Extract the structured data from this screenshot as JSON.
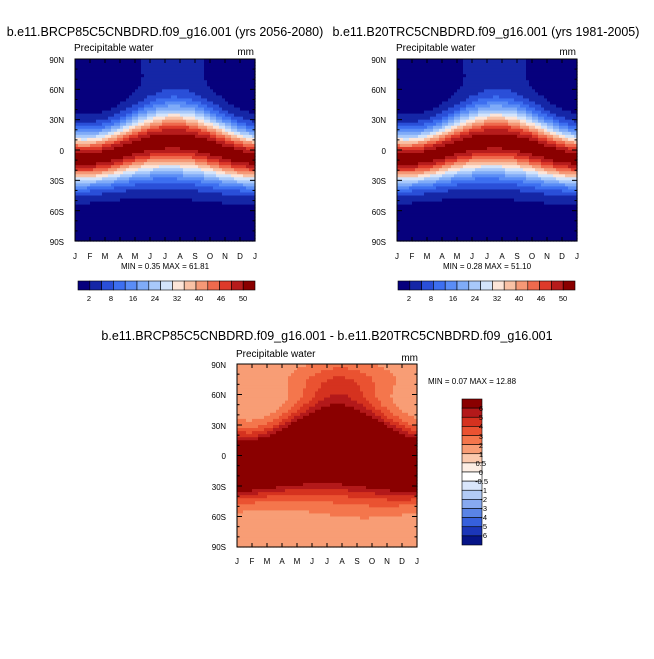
{
  "chart_data": [
    {
      "type": "heatmap",
      "title": "b.e11.BRCP85C5CNBDRD.f09_g16.001 (yrs 2056-2080)",
      "subtitle_left": "Precipitable water",
      "subtitle_right": "mm",
      "x_tick_labels": [
        "J",
        "F",
        "M",
        "A",
        "M",
        "J",
        "J",
        "A",
        "S",
        "O",
        "N",
        "D",
        "J"
      ],
      "y_tick_labels": [
        "90N",
        "60N",
        "30N",
        "0",
        "30S",
        "60S",
        "90S"
      ],
      "stats": "MIN =  0.35 MAX =  61.81",
      "colorbar_labels": [
        "2",
        "8",
        "16",
        "24",
        "32",
        "40",
        "46",
        "50"
      ],
      "scale": 61.8,
      "colormap": "abs"
    },
    {
      "type": "heatmap",
      "title": "b.e11.B20TRC5CNBDRD.f09_g16.001 (yrs 1981-2005)",
      "subtitle_left": "Precipitable water",
      "subtitle_right": "mm",
      "x_tick_labels": [
        "J",
        "F",
        "M",
        "A",
        "M",
        "J",
        "J",
        "A",
        "S",
        "O",
        "N",
        "D",
        "J"
      ],
      "y_tick_labels": [
        "90N",
        "60N",
        "30N",
        "0",
        "30S",
        "60S",
        "90S"
      ],
      "stats": "MIN =  0.28 MAX =  51.10",
      "colorbar_labels": [
        "2",
        "8",
        "16",
        "24",
        "32",
        "40",
        "46",
        "50"
      ],
      "scale": 51.1,
      "colormap": "abs"
    },
    {
      "type": "heatmap",
      "title": "b.e11.BRCP85C5CNBDRD.f09_g16.001 - b.e11.B20TRC5CNBDRD.f09_g16.001",
      "subtitle_left": "Precipitable water",
      "subtitle_right": "mm",
      "x_tick_labels": [
        "J",
        "F",
        "M",
        "A",
        "M",
        "J",
        "J",
        "A",
        "S",
        "O",
        "N",
        "D",
        "J"
      ],
      "y_tick_labels": [
        "90N",
        "60N",
        "30N",
        "0",
        "30S",
        "60S",
        "90S"
      ],
      "stats": "MIN =  0.07 MAX = 12.88",
      "colorbar_labels": [
        "6",
        "5",
        "4",
        "3",
        "2",
        "1",
        "0.5",
        "0",
        "-0.5",
        "-1",
        "-2",
        "-3",
        "-4",
        "-5",
        "-6"
      ],
      "scale": 10.7,
      "colormap": "diff"
    }
  ],
  "colors": {
    "abs": [
      "#06007d",
      "#1526a6",
      "#2a4fd8",
      "#3d6ff0",
      "#5a8df6",
      "#7fabf8",
      "#a8c9fb",
      "#d3e4fb",
      "#fde5d8",
      "#f9c1a5",
      "#f59876",
      "#ef6a4d",
      "#dd3a2a",
      "#b61c1c",
      "#8a0000"
    ],
    "diff": [
      "#8a0000",
      "#b3191a",
      "#d5321f",
      "#ea5231",
      "#f4764c",
      "#f89d75",
      "#fbc9ad",
      "#fdeee4",
      "#ffffff",
      "#d9e6fb",
      "#b2cbf6",
      "#87a9f0",
      "#5a84e6",
      "#3660dc",
      "#1b36b8",
      "#061487"
    ]
  }
}
